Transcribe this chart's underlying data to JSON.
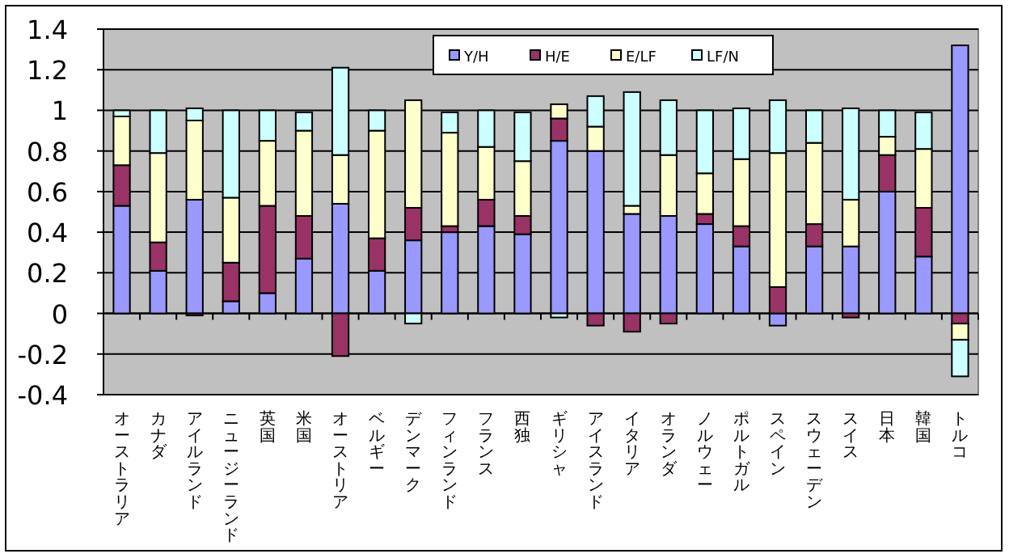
{
  "chart_data": {
    "type": "bar",
    "stacked": true,
    "categories": [
      "オーストラリア",
      "カナダ",
      "アイルランド",
      "ニュージーランド",
      "英国",
      "米国",
      "オーストリア",
      "ベルギー",
      "デンマーク",
      "フィンランド",
      "フランス",
      "西独",
      "ギリシャ",
      "アイスランド",
      "イタリア",
      "オランダ",
      "ノルウェー",
      "ポルトガル",
      "スペイン",
      "スウェーデン",
      "スイス",
      "日本",
      "韓国",
      "トルコ"
    ],
    "series": [
      {
        "name": "Y/H",
        "color": "#9999ff",
        "values": [
          0.53,
          0.21,
          0.56,
          0.06,
          0.1,
          0.27,
          0.54,
          0.21,
          0.36,
          0.4,
          0.43,
          0.39,
          0.85,
          0.8,
          0.49,
          0.48,
          0.44,
          0.33,
          -0.06,
          0.33,
          0.33,
          0.6,
          0.28,
          1.32
        ]
      },
      {
        "name": "H/E",
        "color": "#993366",
        "values": [
          0.2,
          0.14,
          -0.01,
          0.19,
          0.43,
          0.21,
          -0.21,
          0.16,
          0.16,
          0.03,
          0.13,
          0.09,
          0.11,
          -0.06,
          -0.09,
          -0.05,
          0.05,
          0.1,
          0.13,
          0.11,
          -0.02,
          0.18,
          0.24,
          -0.05
        ]
      },
      {
        "name": "E/LF",
        "color": "#ffffcc",
        "values": [
          0.24,
          0.44,
          0.39,
          0.32,
          0.32,
          0.42,
          0.24,
          0.53,
          0.53,
          0.46,
          0.26,
          0.27,
          0.07,
          0.12,
          0.04,
          0.3,
          0.2,
          0.33,
          0.66,
          0.4,
          0.23,
          0.09,
          0.29,
          -0.08
        ]
      },
      {
        "name": "LF/N",
        "color": "#ccffff",
        "values": [
          0.03,
          0.21,
          0.06,
          0.43,
          0.15,
          0.09,
          0.43,
          0.1,
          -0.05,
          0.1,
          0.18,
          0.24,
          -0.02,
          0.15,
          0.56,
          0.27,
          0.31,
          0.25,
          0.26,
          0.16,
          0.45,
          0.13,
          0.18,
          -0.18
        ]
      }
    ],
    "ylim": [
      -0.4,
      1.4
    ],
    "yticks": [
      -0.4,
      -0.2,
      0,
      0.2,
      0.4,
      0.6,
      0.8,
      1,
      1.2,
      1.4
    ],
    "grid": "y",
    "legend": "top"
  }
}
